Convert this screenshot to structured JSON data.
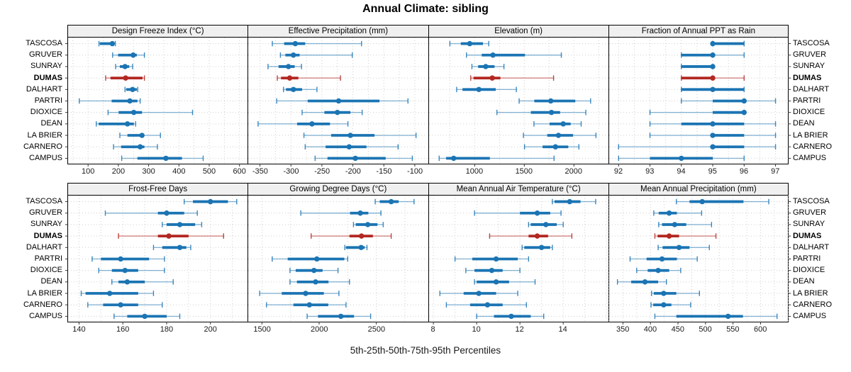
{
  "title": "Annual Climate: sibling",
  "caption": "5th-25th-50th-75th-95th Percentiles",
  "stations": [
    "TASCOSA",
    "GRUVER",
    "SUNRAY",
    "DUMAS",
    "DALHART",
    "PARTRI",
    "DIOXICE",
    "DEAN",
    "LA BRIER",
    "CARNERO",
    "CAMPUS"
  ],
  "highlight_station": "DUMAS",
  "colors": {
    "series": "#1b74b3",
    "highlight": "#b22822",
    "strip_bg": "#f0f0f0",
    "grid": "#cfcfcf",
    "border": "#000000",
    "tick": "#333333"
  },
  "percentiles_shown": [
    5,
    25,
    50,
    75,
    95
  ],
  "chart_data": [
    {
      "type": "interval-dotplot",
      "row": 0,
      "col": 0,
      "title": "Design Freeze Index (°C)",
      "xlim": [
        34,
        627
      ],
      "ticks": [
        100,
        200,
        300,
        400,
        500,
        600
      ],
      "values": [
        [
          136,
          139,
          180,
          185,
          190
        ],
        [
          181,
          199,
          249,
          261,
          286
        ],
        [
          191,
          205,
          222,
          236,
          247
        ],
        [
          158,
          174,
          224,
          280,
          286
        ],
        [
          222,
          226,
          247,
          261,
          264
        ],
        [
          71,
          178,
          238,
          263,
          272
        ],
        [
          166,
          201,
          251,
          278,
          445
        ],
        [
          127,
          135,
          230,
          251,
          257
        ],
        [
          205,
          230,
          278,
          284,
          339
        ],
        [
          184,
          209,
          272,
          286,
          329
        ],
        [
          211,
          263,
          357,
          410,
          480
        ]
      ]
    },
    {
      "type": "interval-dotplot",
      "row": 0,
      "col": 1,
      "title": "Effective Precipitation (mm)",
      "xlim": [
        -369,
        -79
      ],
      "ticks": [
        -350,
        -300,
        -250,
        -200,
        -150,
        -100
      ],
      "values": [
        [
          -330,
          -311,
          -293,
          -277,
          -186
        ],
        [
          -317,
          -309,
          -296,
          -286,
          -201
        ],
        [
          -337,
          -320,
          -304,
          -294,
          -283
        ],
        [
          -322,
          -316,
          -302,
          -288,
          -220
        ],
        [
          -312,
          -308,
          -296,
          -282,
          -258
        ],
        [
          -323,
          -273,
          -223,
          -157,
          -111
        ],
        [
          -282,
          -246,
          -225,
          -204,
          -185
        ],
        [
          -353,
          -290,
          -266,
          -237,
          -208
        ],
        [
          -279,
          -235,
          -204,
          -165,
          -98
        ],
        [
          -277,
          -244,
          -206,
          -178,
          -127
        ],
        [
          -261,
          -241,
          -196,
          -147,
          -104
        ]
      ]
    },
    {
      "type": "interval-dotplot",
      "row": 0,
      "col": 2,
      "title": "Elevation (m)",
      "xlim": [
        540,
        2350
      ],
      "ticks": [
        1000,
        1500,
        2000
      ],
      "values": [
        [
          750,
          860,
          950,
          1083,
          1142
        ],
        [
          917,
          1071,
          1184,
          1507,
          1873
        ],
        [
          972,
          1035,
          1111,
          1200,
          1295
        ],
        [
          960,
          988,
          1177,
          1259,
          1795
        ],
        [
          818,
          877,
          1042,
          1212,
          1420
        ],
        [
          1448,
          1601,
          1767,
          2014,
          2168
        ],
        [
          1224,
          1566,
          1774,
          1861,
          2120
        ],
        [
          1597,
          1755,
          1892,
          1967,
          2073
        ],
        [
          1491,
          1731,
          1844,
          1991,
          2222
        ],
        [
          1502,
          1684,
          1814,
          1943,
          2050
        ],
        [
          642,
          712,
          788,
          1153,
          1800
        ]
      ]
    },
    {
      "type": "interval-dotplot",
      "row": 0,
      "col": 3,
      "title": "Fraction of Annual PPT as Rain",
      "xlim": [
        91.7,
        97.4
      ],
      "ticks": [
        92,
        93,
        94,
        95,
        96,
        97
      ],
      "values": [
        [
          95,
          95,
          95,
          96,
          96
        ],
        [
          94,
          94,
          95,
          95,
          96
        ],
        [
          94,
          94,
          95,
          95,
          95
        ],
        [
          94,
          94,
          95,
          95,
          96
        ],
        [
          94,
          94,
          95,
          96,
          96
        ],
        [
          94,
          95,
          96,
          96,
          97
        ],
        [
          93,
          95,
          96,
          96,
          96
        ],
        [
          93,
          94,
          95,
          96,
          97
        ],
        [
          93,
          95,
          95,
          96,
          97
        ],
        [
          92,
          95,
          95,
          96,
          97
        ],
        [
          92,
          93,
          94,
          95,
          96
        ]
      ]
    },
    {
      "type": "interval-dotplot",
      "row": 1,
      "col": 0,
      "title": "Frost-Free Days",
      "xlim": [
        135,
        217
      ],
      "ticks": [
        140,
        160,
        180,
        200
      ],
      "values": [
        [
          188,
          192,
          200,
          208,
          212
        ],
        [
          152,
          176,
          180,
          188,
          194
        ],
        [
          178,
          180,
          186,
          193,
          196
        ],
        [
          158,
          176,
          181,
          190,
          206
        ],
        [
          174,
          178,
          186,
          189,
          191
        ],
        [
          146,
          150,
          159,
          172,
          179
        ],
        [
          149,
          155,
          161,
          167,
          179
        ],
        [
          155,
          158,
          162,
          170,
          183
        ],
        [
          141,
          143,
          154,
          167,
          174
        ],
        [
          144,
          151,
          159,
          167,
          178
        ],
        [
          156,
          162,
          170,
          180,
          186
        ]
      ]
    },
    {
      "type": "interval-dotplot",
      "row": 1,
      "col": 1,
      "title": "Growing Degree Days (°C)",
      "xlim": [
        1380,
        2950
      ],
      "ticks": [
        1500,
        2000,
        2500
      ],
      "values": [
        [
          2490,
          2530,
          2630,
          2695,
          2830
        ],
        [
          1840,
          2270,
          2360,
          2430,
          2540
        ],
        [
          2300,
          2320,
          2425,
          2510,
          2560
        ],
        [
          1930,
          2265,
          2370,
          2470,
          2630
        ],
        [
          2225,
          2235,
          2367,
          2398,
          2418
        ],
        [
          1590,
          1725,
          1980,
          2220,
          2250
        ],
        [
          1745,
          1795,
          1955,
          2030,
          2165
        ],
        [
          1745,
          1806,
          1969,
          2082,
          2265
        ],
        [
          1480,
          1673,
          1882,
          2041,
          2173
        ],
        [
          1540,
          1775,
          1915,
          2080,
          2235
        ],
        [
          1895,
          1990,
          2190,
          2305,
          2450
        ]
      ]
    },
    {
      "type": "interval-dotplot",
      "row": 1,
      "col": 2,
      "title": "Mean Annual Air Temperature (°C)",
      "xlim": [
        7.8,
        16.1
      ],
      "ticks": [
        8,
        10,
        12,
        14
      ],
      "values": [
        [
          13.5,
          13.6,
          14.3,
          14.8,
          15.5
        ],
        [
          9.9,
          12.0,
          12.8,
          13.4,
          13.9
        ],
        [
          12.4,
          12.5,
          13.2,
          13.7,
          14.0
        ],
        [
          10.6,
          12.4,
          12.8,
          13.3,
          14.4
        ],
        [
          12.1,
          12.2,
          13.0,
          13.4,
          13.5
        ],
        [
          9.0,
          9.8,
          10.9,
          11.9,
          12.4
        ],
        [
          9.5,
          9.9,
          10.7,
          11.2,
          12.0
        ],
        [
          9.9,
          10.0,
          10.9,
          11.5,
          12.7
        ],
        [
          8.3,
          9.4,
          10.1,
          10.9,
          11.9
        ],
        [
          8.6,
          9.7,
          10.5,
          11.2,
          12.3
        ],
        [
          10.0,
          10.8,
          11.6,
          12.5,
          13.1
        ]
      ]
    },
    {
      "type": "interval-dotplot",
      "row": 1,
      "col": 3,
      "title": "Mean Annual Precipitation (mm)",
      "xlim": [
        325,
        650
      ],
      "ticks": [
        350,
        400,
        450,
        500,
        550,
        600
      ],
      "values": [
        [
          447,
          471,
          494,
          569,
          615
        ],
        [
          406,
          415,
          434,
          448,
          493
        ],
        [
          415,
          421,
          444,
          465,
          511
        ],
        [
          408,
          413,
          434,
          452,
          519
        ],
        [
          414,
          422,
          452,
          471,
          507
        ],
        [
          363,
          393,
          421,
          448,
          485
        ],
        [
          375,
          395,
          414,
          434,
          455
        ],
        [
          340,
          365,
          390,
          414,
          429
        ],
        [
          402,
          406,
          424,
          447,
          489
        ],
        [
          401,
          405,
          424,
          438,
          473
        ],
        [
          408,
          447,
          541,
          568,
          630
        ]
      ]
    }
  ]
}
